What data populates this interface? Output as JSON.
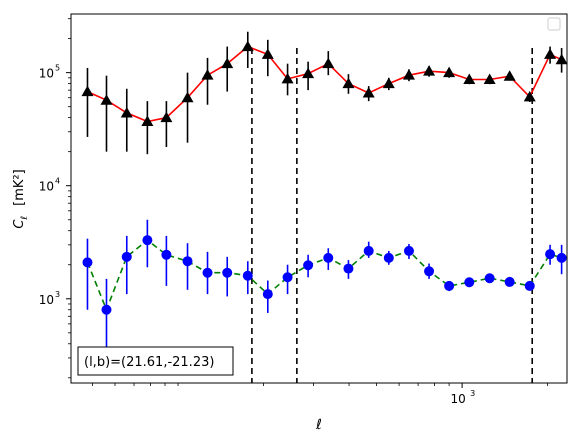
{
  "chart_data": {
    "type": "scatter",
    "xlabel": "ℓ",
    "ylabel_main": "C",
    "ylabel_sub": "ℓ",
    "ylabel_unit": "[mK²]",
    "xscale": "log",
    "yscale": "log",
    "xlim": [
      42,
      2340
    ],
    "ylim": [
      180,
      330000
    ],
    "x_ticks": [
      {
        "value": 1000,
        "label": "10",
        "exp": "3"
      }
    ],
    "y_ticks": [
      {
        "value": 1000,
        "label": "10",
        "exp": "3"
      },
      {
        "value": 10000,
        "label": "10",
        "exp": "4"
      },
      {
        "value": 100000,
        "label": "10",
        "exp": "5"
      }
    ],
    "vlines": [
      182,
      262,
      1765
    ],
    "annotation": "(l,b)=(21.61,-21.23)",
    "legend": {
      "placement": "top-right",
      "entries": []
    },
    "colors": {
      "upper_line": "#ff0000",
      "upper_marker": "#000000",
      "lower_line": "#008000",
      "lower_marker": "#0000ff"
    },
    "series": [
      {
        "line_style": "solid",
        "marker": "triangle",
        "points": [
          {
            "x": 48,
            "y": 68000,
            "lo": 27000,
            "hi": 110000
          },
          {
            "x": 56,
            "y": 57000,
            "lo": 20000,
            "hi": 94000
          },
          {
            "x": 66,
            "y": 44000,
            "lo": 20000,
            "hi": 72000
          },
          {
            "x": 78,
            "y": 37000,
            "lo": 19000,
            "hi": 56000
          },
          {
            "x": 91,
            "y": 40000,
            "lo": 22000,
            "hi": 56000
          },
          {
            "x": 108,
            "y": 60000,
            "lo": 24000,
            "hi": 100000
          },
          {
            "x": 127,
            "y": 95000,
            "lo": 52000,
            "hi": 135000
          },
          {
            "x": 149,
            "y": 120000,
            "lo": 68000,
            "hi": 170000
          },
          {
            "x": 176,
            "y": 170000,
            "lo": 110000,
            "hi": 230000
          },
          {
            "x": 207,
            "y": 145000,
            "lo": 93000,
            "hi": 195000
          },
          {
            "x": 243,
            "y": 88000,
            "lo": 63000,
            "hi": 120000
          },
          {
            "x": 287,
            "y": 98000,
            "lo": 70000,
            "hi": 125000
          },
          {
            "x": 338,
            "y": 120000,
            "lo": 95000,
            "hi": 155000
          },
          {
            "x": 398,
            "y": 80000,
            "lo": 65000,
            "hi": 97000
          },
          {
            "x": 469,
            "y": 66000,
            "lo": 56000,
            "hi": 76000
          },
          {
            "x": 552,
            "y": 80000,
            "lo": 70000,
            "hi": 90000
          },
          {
            "x": 650,
            "y": 95000,
            "lo": 84000,
            "hi": 107000
          },
          {
            "x": 765,
            "y": 103000,
            "lo": 92000,
            "hi": 114000
          },
          {
            "x": 900,
            "y": 100000,
            "lo": 90000,
            "hi": 110000
          },
          {
            "x": 1060,
            "y": 87000,
            "lo": 79000,
            "hi": 95000
          },
          {
            "x": 1250,
            "y": 87000,
            "lo": 79000,
            "hi": 95000
          },
          {
            "x": 1470,
            "y": 93000,
            "lo": 85000,
            "hi": 101000
          },
          {
            "x": 1730,
            "y": 61000,
            "lo": 55000,
            "hi": 67000
          },
          {
            "x": 2040,
            "y": 145000,
            "lo": 120000,
            "hi": 170000
          },
          {
            "x": 2240,
            "y": 130000,
            "lo": 100000,
            "hi": 165000
          }
        ]
      },
      {
        "line_style": "dashed",
        "marker": "circle",
        "points": [
          {
            "x": 48,
            "y": 2100,
            "lo": 800,
            "hi": 3400
          },
          {
            "x": 56,
            "y": 800,
            "lo": 250,
            "hi": 1500
          },
          {
            "x": 66,
            "y": 2350,
            "lo": 1100,
            "hi": 3600
          },
          {
            "x": 78,
            "y": 3300,
            "lo": 1900,
            "hi": 5000
          },
          {
            "x": 91,
            "y": 2450,
            "lo": 1300,
            "hi": 3600
          },
          {
            "x": 108,
            "y": 2150,
            "lo": 1200,
            "hi": 3100
          },
          {
            "x": 127,
            "y": 1700,
            "lo": 1100,
            "hi": 2600
          },
          {
            "x": 149,
            "y": 1700,
            "lo": 1050,
            "hi": 2350
          },
          {
            "x": 176,
            "y": 1600,
            "lo": 1100,
            "hi": 2150
          },
          {
            "x": 207,
            "y": 1100,
            "lo": 750,
            "hi": 1450
          },
          {
            "x": 243,
            "y": 1550,
            "lo": 1100,
            "hi": 2000
          },
          {
            "x": 287,
            "y": 1980,
            "lo": 1550,
            "hi": 2450
          },
          {
            "x": 338,
            "y": 2300,
            "lo": 1800,
            "hi": 2800
          },
          {
            "x": 398,
            "y": 1850,
            "lo": 1500,
            "hi": 2200
          },
          {
            "x": 469,
            "y": 2650,
            "lo": 2300,
            "hi": 3200
          },
          {
            "x": 552,
            "y": 2300,
            "lo": 2000,
            "hi": 2650
          },
          {
            "x": 650,
            "y": 2650,
            "lo": 2250,
            "hi": 3050
          },
          {
            "x": 765,
            "y": 1750,
            "lo": 1500,
            "hi": 2050
          },
          {
            "x": 900,
            "y": 1300,
            "lo": 1170,
            "hi": 1430
          },
          {
            "x": 1060,
            "y": 1400,
            "lo": 1270,
            "hi": 1530
          },
          {
            "x": 1250,
            "y": 1520,
            "lo": 1380,
            "hi": 1660
          },
          {
            "x": 1470,
            "y": 1410,
            "lo": 1290,
            "hi": 1530
          },
          {
            "x": 1730,
            "y": 1300,
            "lo": 1180,
            "hi": 1420
          },
          {
            "x": 2040,
            "y": 2480,
            "lo": 2000,
            "hi": 3000
          },
          {
            "x": 2240,
            "y": 2300,
            "lo": 1650,
            "hi": 3000
          }
        ]
      }
    ]
  }
}
